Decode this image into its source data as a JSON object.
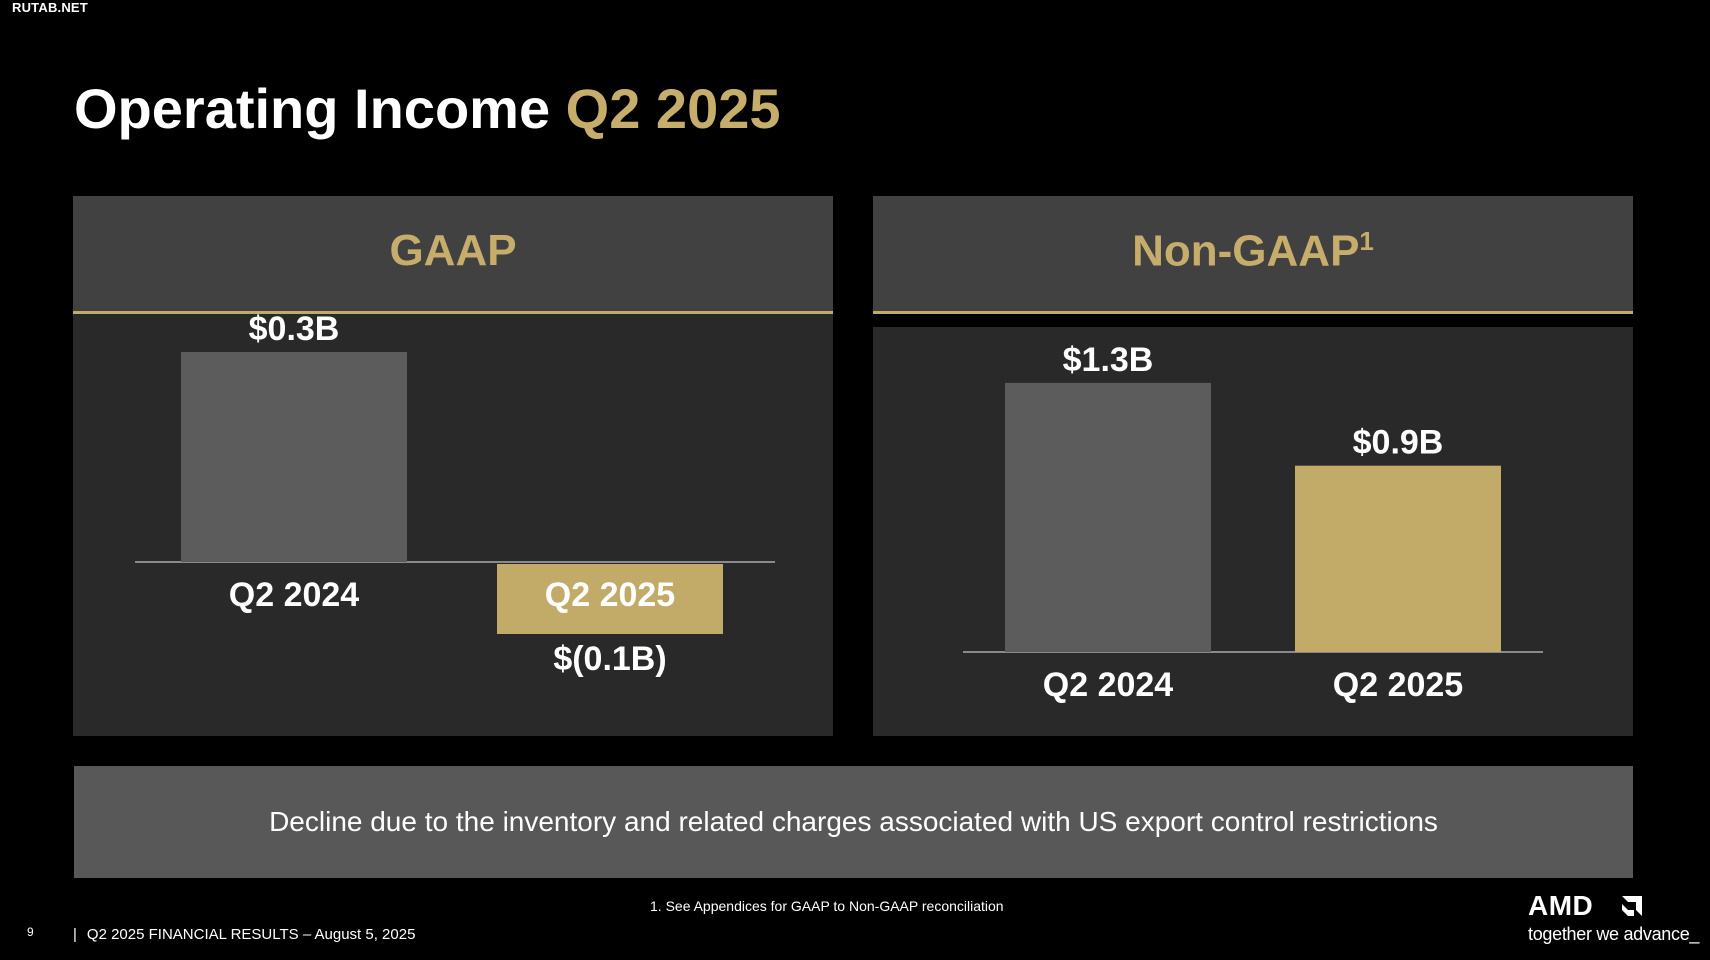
{
  "watermark": "RUTAB.NET",
  "title": {
    "main": "Operating Income",
    "accent": "Q2 2025"
  },
  "panels": {
    "gaap": {
      "heading": "GAAP"
    },
    "non_gaap": {
      "heading": "Non-GAAP",
      "footnote_marker": "1"
    }
  },
  "chart_data": [
    {
      "type": "bar",
      "title": "GAAP",
      "categories": [
        "Q2 2024",
        "Q2 2025"
      ],
      "values": [
        0.3,
        -0.1
      ],
      "data_labels": [
        "$0.3B",
        "$(0.1B)"
      ],
      "unit": "$B",
      "colors": [
        "#5c5c5c",
        "#c2aa68"
      ]
    },
    {
      "type": "bar",
      "title": "Non-GAAP",
      "categories": [
        "Q2 2024",
        "Q2 2025"
      ],
      "values": [
        1.3,
        0.9
      ],
      "data_labels": [
        "$1.3B",
        "$0.9B"
      ],
      "unit": "$B",
      "colors": [
        "#5c5c5c",
        "#c2aa68"
      ]
    }
  ],
  "note": "Decline due to the inventory and related charges associated with US export control restrictions",
  "footnote": "1. See Appendices for GAAP to Non-GAAP reconciliation",
  "footer": {
    "page": "9",
    "separator": "|",
    "text": "Q2 2025 FINANCIAL RESULTS – August 5, 2025"
  },
  "logo": {
    "brand": "AMD",
    "tagline": "together we advance_"
  },
  "colors": {
    "background": "#000000",
    "accent": "#c6ad6b",
    "bar_prior": "#5c5c5c",
    "bar_current": "#c2aa68"
  }
}
